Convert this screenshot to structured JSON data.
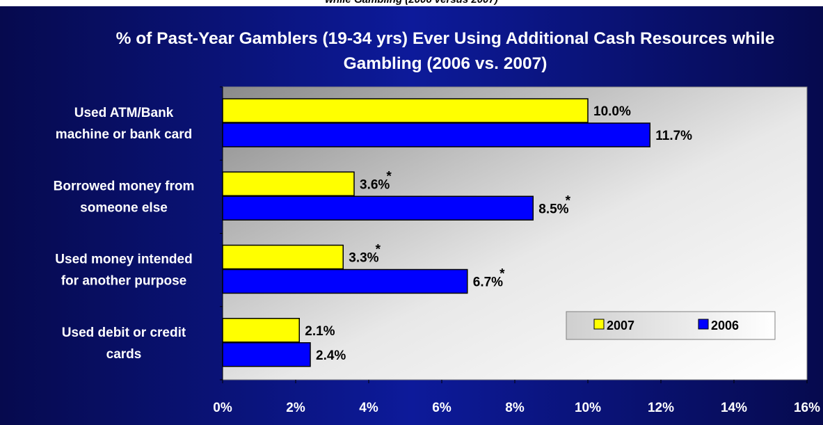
{
  "top_caption": "while Gambling (2006 versus 2007)",
  "colors": {
    "2007": "#ffff00",
    "2006": "#0000ff",
    "background": "#0a1480",
    "plot_area": "#e6e6e6"
  },
  "chart_data": {
    "type": "bar",
    "orientation": "horizontal",
    "title": "% of Past-Year Gamblers (19-34 yrs) Ever Using Additional Cash Resources while Gambling (2006 vs. 2007)",
    "categories": [
      "Used ATM/Bank machine or bank card",
      "Borrowed money from someone else",
      "Used money intended for another purpose",
      "Used debit or credit cards"
    ],
    "category_lines": [
      [
        "Used ATM/Bank",
        "machine or bank card"
      ],
      [
        "Borrowed money from",
        "someone else"
      ],
      [
        "Used money intended",
        "for another purpose"
      ],
      [
        "Used debit or credit",
        "cards"
      ]
    ],
    "series": [
      {
        "name": "2007",
        "values": [
          10.0,
          3.6,
          3.3,
          2.1
        ],
        "labels": [
          "10.0%",
          "3.6%",
          "3.3%",
          "2.1%"
        ],
        "significant": [
          false,
          true,
          true,
          false
        ]
      },
      {
        "name": "2006",
        "values": [
          11.7,
          8.5,
          6.7,
          2.4
        ],
        "labels": [
          "11.7%",
          "8.5%",
          "6.7%",
          "2.4%"
        ],
        "significant": [
          false,
          true,
          true,
          false
        ]
      }
    ],
    "significance_marker": "*",
    "xlim": [
      0,
      16
    ],
    "xticks": [
      0,
      2,
      4,
      6,
      8,
      10,
      12,
      14,
      16
    ],
    "xtick_labels": [
      "0%",
      "2%",
      "4%",
      "6%",
      "8%",
      "10%",
      "12%",
      "14%",
      "16%"
    ],
    "legend": {
      "placement": "bottom-right",
      "entries": [
        "2007",
        "2006"
      ]
    },
    "grid": false
  }
}
